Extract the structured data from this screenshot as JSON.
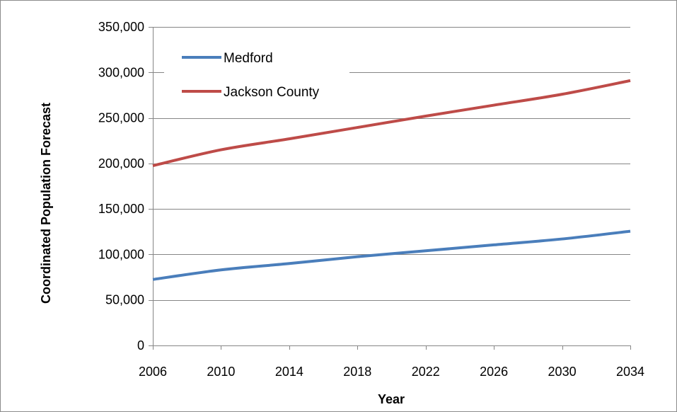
{
  "chart_data": {
    "type": "line",
    "title": "",
    "xlabel": "Year",
    "ylabel": "Coordinated Population  Forecast",
    "x": [
      2006,
      2010,
      2014,
      2018,
      2022,
      2026,
      2030,
      2034
    ],
    "x_tick_labels": [
      "2006",
      "2010",
      "2014",
      "2018",
      "2022",
      "2026",
      "2030",
      "2034"
    ],
    "y_tick_labels": [
      "0",
      "50,000",
      "100,000",
      "150,000",
      "200,000",
      "250,000",
      "300,000",
      "350,000"
    ],
    "y_ticks": [
      0,
      50000,
      100000,
      150000,
      200000,
      250000,
      300000,
      350000
    ],
    "xlim": [
      2006,
      2034
    ],
    "ylim": [
      0,
      350000
    ],
    "grid": "horizontal",
    "legend_position": "top-left",
    "series": [
      {
        "name": "Medford",
        "color": "#4a7ebb",
        "values": [
          72500,
          83000,
          90000,
          97500,
          104000,
          110500,
          117000,
          125500
        ]
      },
      {
        "name": "Jackson County",
        "color": "#be4b48",
        "values": [
          197500,
          215000,
          227000,
          239500,
          252000,
          264000,
          276000,
          291000
        ]
      }
    ]
  }
}
